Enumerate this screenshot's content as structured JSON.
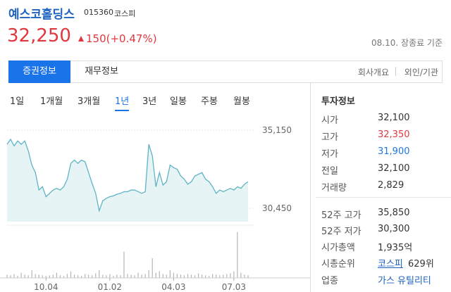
{
  "header": {
    "name": "예스코홀딩스",
    "code": "015360",
    "market": "코스피"
  },
  "quote": {
    "price": "32,250",
    "change": "150(+0.47%)",
    "status": "08.10. 장종료 기준"
  },
  "tabs": {
    "items": [
      "증권정보",
      "재무정보"
    ],
    "active": 0,
    "links": [
      "회사개요",
      "외인/기관"
    ]
  },
  "periods": {
    "items": [
      "1일",
      "1개월",
      "3개월",
      "1년",
      "3년",
      "일봉",
      "주봉",
      "월봉"
    ],
    "active": 3
  },
  "chart": {
    "type": "line",
    "color": "#5fb4c4",
    "values": [
      34300,
      34600,
      34200,
      34500,
      34300,
      34500,
      33900,
      33050,
      32600,
      31550,
      31750,
      31150,
      31350,
      31550,
      31650,
      31550,
      31750,
      32200,
      33150,
      33350,
      33150,
      33350,
      33250,
      32600,
      31950,
      31350,
      30300,
      30900,
      31050,
      31150,
      31200,
      31300,
      31350,
      31450,
      31450,
      31550,
      31550,
      31450,
      31350,
      31450,
      34300,
      33600,
      31750,
      32600,
      31850,
      32050,
      33050,
      32900,
      32800,
      32400,
      32200,
      31900,
      32050,
      32400,
      32500,
      32600,
      32200,
      32050,
      31750,
      31350,
      31550,
      31450,
      31550,
      31650,
      31550,
      31750,
      31650,
      31900,
      32050
    ],
    "ylim": [
      29650,
      35360
    ],
    "yticks": [
      {
        "value": 35150,
        "label": "35,150"
      },
      {
        "value": 30450,
        "label": "30,450"
      }
    ],
    "xticks": [
      {
        "value": 11,
        "label": "10.04"
      },
      {
        "value": 29,
        "label": "01.02"
      },
      {
        "value": 47,
        "label": "04.03"
      },
      {
        "value": 64,
        "label": "07.03"
      }
    ],
    "volume": {
      "color": "#b5b5b5",
      "values": [
        5,
        4,
        6,
        3,
        8,
        5,
        4,
        12,
        6,
        5,
        4,
        3,
        4,
        5,
        8,
        4,
        3,
        6,
        10,
        5,
        4,
        3,
        6,
        5,
        4,
        7,
        12,
        5,
        4,
        6,
        3,
        5,
        4,
        40,
        6,
        5,
        4,
        8,
        5,
        6,
        12,
        30,
        8,
        10,
        6,
        5,
        12,
        8,
        6,
        5,
        4,
        6,
        5,
        4,
        7,
        5,
        4,
        3,
        6,
        5,
        4,
        5,
        6,
        7,
        10,
        70,
        8,
        5,
        4
      ],
      "ylim": [
        0,
        75
      ]
    }
  },
  "info": {
    "title": "투자정보",
    "rows": [
      {
        "label": "시가",
        "value": "32,100"
      },
      {
        "label": "고가",
        "value": "32,350",
        "color": "#e0383e"
      },
      {
        "label": "저가",
        "value": "31,900",
        "color": "#1e78e0"
      },
      {
        "label": "전일",
        "value": "32,100"
      },
      {
        "label": "거래량",
        "value": "2,829"
      }
    ],
    "rows2": [
      {
        "label": "52주 고가",
        "value": "35,850"
      },
      {
        "label": "52주 저가",
        "value": "30,300"
      },
      {
        "label": "시가총액",
        "value": "1,935억"
      }
    ],
    "rank": {
      "label": "시총순위",
      "link": "코스피",
      "value": "629위"
    },
    "sector": {
      "label": "업종",
      "value": "가스 유틸리티"
    }
  }
}
